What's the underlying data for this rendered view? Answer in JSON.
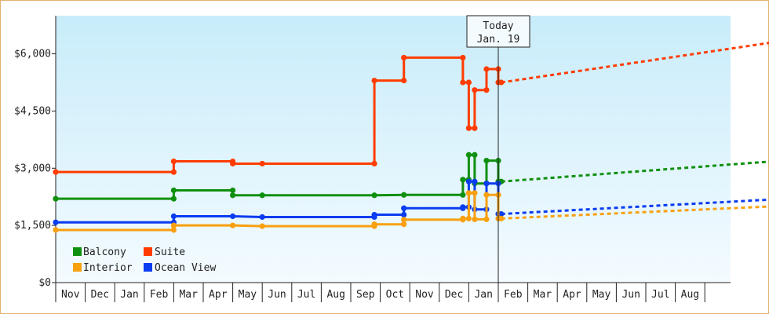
{
  "chart_data": {
    "type": "line",
    "title": "",
    "xlabel": "",
    "ylabel": "",
    "y_ticks": [
      "$0",
      "$1,500",
      "$3,000",
      "$4,500",
      "$6,000"
    ],
    "y_tick_values": [
      0,
      1500,
      3000,
      4500,
      6000
    ],
    "ylim": [
      0,
      7000
    ],
    "x_ticks": [
      "Nov",
      "Dec",
      "Jan",
      "Feb",
      "Mar",
      "Apr",
      "May",
      "Jun",
      "Jul",
      "Aug",
      "Sep",
      "Oct",
      "Nov",
      "Dec",
      "Jan",
      "Feb",
      "Mar",
      "Apr",
      "May",
      "Jun",
      "Jul",
      "Aug"
    ],
    "today": {
      "line1": "Today",
      "line2": "Jan. 19",
      "x": 15.0
    },
    "legend": [
      "Balcony",
      "Suite",
      "Interior",
      "Ocean View"
    ],
    "colors": {
      "Balcony": "#109010",
      "Suite": "#ff3c00",
      "Interior": "#f8a010",
      "Ocean View": "#0a3cf0"
    },
    "series": [
      {
        "name": "Suite",
        "points": [
          [
            0,
            2900
          ],
          [
            4.0,
            2900
          ],
          [
            4.0,
            3180
          ],
          [
            6.0,
            3180
          ],
          [
            6.0,
            3120
          ],
          [
            7.0,
            3120
          ],
          [
            10.8,
            3120
          ],
          [
            10.8,
            5300
          ],
          [
            11.8,
            5300
          ],
          [
            11.8,
            5900
          ],
          [
            13.8,
            5900
          ],
          [
            13.8,
            5250
          ],
          [
            14.0,
            5250
          ],
          [
            14.0,
            4050
          ],
          [
            14.2,
            4050
          ],
          [
            14.2,
            5050
          ],
          [
            14.6,
            5050
          ],
          [
            14.6,
            5600
          ],
          [
            15.0,
            5600
          ],
          [
            15.0,
            5250
          ],
          [
            15.1,
            5250
          ]
        ],
        "projection": [
          [
            15.1,
            5250
          ],
          [
            24.3,
            6300
          ]
        ]
      },
      {
        "name": "Balcony",
        "points": [
          [
            0,
            2200
          ],
          [
            4.0,
            2200
          ],
          [
            4.0,
            2420
          ],
          [
            6.0,
            2420
          ],
          [
            6.0,
            2290
          ],
          [
            7.0,
            2290
          ],
          [
            10.8,
            2290
          ],
          [
            11.8,
            2300
          ],
          [
            13.8,
            2300
          ],
          [
            13.8,
            2700
          ],
          [
            14.0,
            2700
          ],
          [
            14.0,
            3350
          ],
          [
            14.2,
            3350
          ],
          [
            14.2,
            2600
          ],
          [
            14.6,
            2600
          ],
          [
            14.6,
            3200
          ],
          [
            15.0,
            3200
          ],
          [
            15.0,
            2650
          ],
          [
            15.1,
            2650
          ]
        ],
        "projection": [
          [
            15.1,
            2650
          ],
          [
            24.3,
            3180
          ]
        ]
      },
      {
        "name": "Ocean View",
        "points": [
          [
            0,
            1580
          ],
          [
            4.0,
            1580
          ],
          [
            4.0,
            1740
          ],
          [
            6.0,
            1740
          ],
          [
            7.0,
            1720
          ],
          [
            10.8,
            1720
          ],
          [
            10.8,
            1780
          ],
          [
            11.8,
            1780
          ],
          [
            11.8,
            1950
          ],
          [
            13.8,
            1950
          ],
          [
            13.8,
            1980
          ],
          [
            14.0,
            1980
          ],
          [
            14.0,
            2650
          ],
          [
            14.2,
            2650
          ],
          [
            14.2,
            1920
          ],
          [
            14.6,
            1920
          ],
          [
            14.6,
            2600
          ],
          [
            15.0,
            2600
          ],
          [
            15.0,
            1800
          ],
          [
            15.1,
            1800
          ]
        ],
        "projection": [
          [
            15.1,
            1800
          ],
          [
            24.3,
            2180
          ]
        ]
      },
      {
        "name": "Interior",
        "points": [
          [
            0,
            1380
          ],
          [
            4.0,
            1380
          ],
          [
            4.0,
            1500
          ],
          [
            6.0,
            1500
          ],
          [
            7.0,
            1480
          ],
          [
            10.8,
            1480
          ],
          [
            10.8,
            1530
          ],
          [
            11.8,
            1530
          ],
          [
            11.8,
            1650
          ],
          [
            13.8,
            1650
          ],
          [
            13.8,
            1680
          ],
          [
            14.0,
            1680
          ],
          [
            14.0,
            2350
          ],
          [
            14.2,
            2350
          ],
          [
            14.2,
            1660
          ],
          [
            14.6,
            1660
          ],
          [
            14.6,
            2300
          ],
          [
            15.0,
            2300
          ],
          [
            15.0,
            1680
          ],
          [
            15.1,
            1680
          ]
        ],
        "projection": [
          [
            15.1,
            1680
          ],
          [
            24.3,
            2000
          ]
        ]
      }
    ]
  }
}
